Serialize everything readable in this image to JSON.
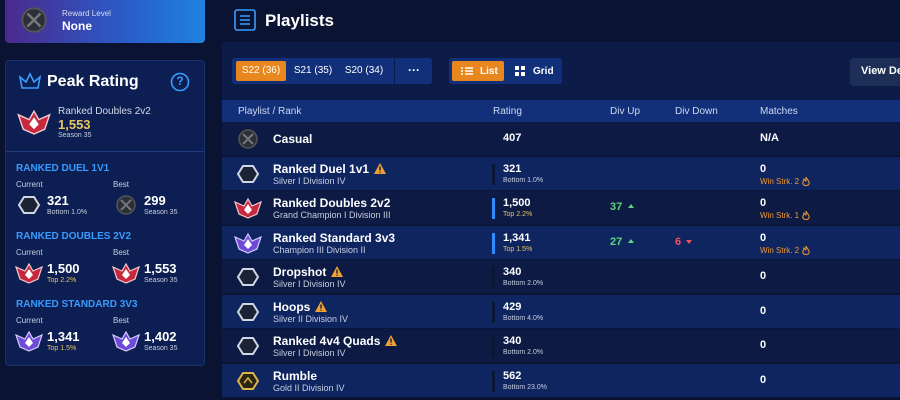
{
  "sidebar": {
    "reward": {
      "label": "Reward Level",
      "value": "None"
    },
    "peak": {
      "title": "Peak Rating",
      "help": "?",
      "playlist": "Ranked Doubles 2v2",
      "rating": "1,553",
      "season": "Season 35",
      "modes": [
        {
          "name": "RANKED DUEL 1V1",
          "current": {
            "label": "Current",
            "rating": "321",
            "note": "Bottom 1.0%",
            "icon": "silver"
          },
          "best": {
            "label": "Best",
            "rating": "299",
            "note": "Season 35",
            "icon": "casual"
          }
        },
        {
          "name": "RANKED DOUBLES 2V2",
          "current": {
            "label": "Current",
            "rating": "1,500",
            "note": "Top 2.2%",
            "icon": "gc"
          },
          "best": {
            "label": "Best",
            "rating": "1,553",
            "note": "Season 35",
            "icon": "gc"
          }
        },
        {
          "name": "RANKED STANDARD 3V3",
          "current": {
            "label": "Current",
            "rating": "1,341",
            "note": "Top 1.5%",
            "icon": "champ"
          },
          "best": {
            "label": "Best",
            "rating": "1,402",
            "note": "Season 35",
            "icon": "champ"
          }
        }
      ]
    }
  },
  "header": {
    "title": "Playlists"
  },
  "toolbar": {
    "seasons": [
      "S22 (36)",
      "S21 (35)",
      "S20 (34)"
    ],
    "more": "···",
    "views": [
      "List",
      "Grid"
    ],
    "details": "View De"
  },
  "table": {
    "columns": [
      "Playlist / Rank",
      "Rating",
      "Div Up",
      "Div Down",
      "Matches"
    ],
    "rows": [
      {
        "name": "Casual",
        "icon": "casual",
        "rating": "407",
        "matches": "N/A"
      },
      {
        "name": "Ranked Duel 1v1",
        "icon": "silver",
        "warning": true,
        "rank": "Silver I Division IV",
        "rating": "321",
        "note": "Bottom 1.0%",
        "matches": "0",
        "streak": "Win Strk. 2"
      },
      {
        "name": "Ranked Doubles 2v2",
        "icon": "gc",
        "rank": "Grand Champion I Division III",
        "rating": "1,500",
        "note": "Top 2.2%",
        "div_up": "37",
        "matches": "0",
        "streak": "Win Strk. 1"
      },
      {
        "name": "Ranked Standard 3v3",
        "icon": "champ",
        "rank": "Champion III Division II",
        "rating": "1,341",
        "note": "Top 1.5%",
        "div_up": "27",
        "div_down": "6",
        "matches": "0",
        "streak": "Win Strk. 2"
      },
      {
        "name": "Dropshot",
        "icon": "silver",
        "warning": true,
        "rank": "Silver I Division IV",
        "rating": "340",
        "note": "Bottom 2.0%",
        "matches": "0"
      },
      {
        "name": "Hoops",
        "icon": "silver",
        "warning": true,
        "rank": "Silver II Division IV",
        "rating": "429",
        "note": "Bottom 4.0%",
        "matches": "0"
      },
      {
        "name": "Ranked 4v4 Quads",
        "icon": "silver",
        "warning": true,
        "rank": "Silver I Division IV",
        "rating": "340",
        "note": "Bottom 2.0%",
        "matches": "0"
      },
      {
        "name": "Rumble",
        "icon": "gold",
        "rank": "Gold II Division IV",
        "rating": "562",
        "note": "Bottom 23.0%",
        "matches": "0"
      }
    ]
  }
}
